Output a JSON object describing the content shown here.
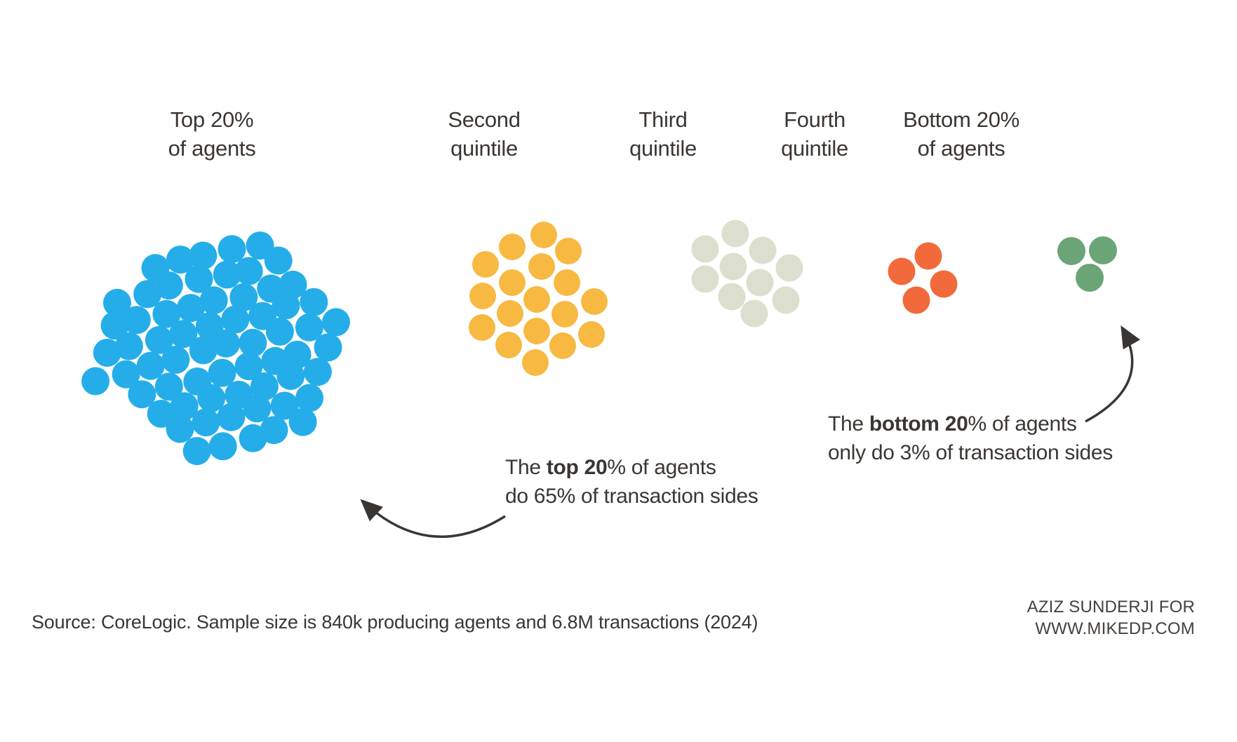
{
  "columns": [
    {
      "id": "top-20-of-agents",
      "header_line1": "Top 20%",
      "header_line2": "of agents",
      "dots": 65,
      "color": "#25ADEA"
    },
    {
      "id": "second-quintile",
      "header_line1": "Second",
      "header_line2": "quintile",
      "dots": 18,
      "color": "#F7B942"
    },
    {
      "id": "third-quintile",
      "header_line1": "Third",
      "header_line2": "quintile",
      "dots": 10,
      "color": "#DCDFCD"
    },
    {
      "id": "fourth-quintile",
      "header_line1": "Fourth",
      "header_line2": "quintile",
      "dots": 4,
      "color": "#F26A3B"
    },
    {
      "id": "bottom-20-of-agents",
      "header_line1": "Bottom 20%",
      "header_line2": "of agents",
      "dots": 3,
      "color": "#6BA476"
    }
  ],
  "chart_data": {
    "type": "dot-cluster",
    "categories": [
      "Top 20% of agents",
      "Second quintile",
      "Third quintile",
      "Fourth quintile",
      "Bottom 20% of agents"
    ],
    "values": [
      65,
      18,
      10,
      4,
      3
    ],
    "values_unit": "percent of transaction sides (1 dot = 1%)",
    "colors": [
      "#25ADEA",
      "#F7B942",
      "#DCDFCD",
      "#F26A3B",
      "#6BA476"
    ],
    "annotations": [
      "The top 20% of agents do 65% of transaction sides",
      "The bottom 20% of agents only do 3% of transaction sides"
    ],
    "legend_position": "none",
    "grid": false
  },
  "annotations": {
    "top": {
      "pre": "The ",
      "bold": "top 20",
      "rest": "% of agents",
      "line2": "do 65% of transaction sides"
    },
    "bottom": {
      "pre": "The ",
      "bold": "bottom 20",
      "rest": "% of agents",
      "line2": "only do 3% of transaction sides"
    }
  },
  "source": "Source: CoreLogic. Sample size is 840k producing agents and 6.8M transactions (2024)",
  "credit": {
    "line1": "AZIZ SUNDERJI FOR",
    "line2": "WWW.MIKEDP.COM"
  },
  "arrow_color": "#3a3633"
}
